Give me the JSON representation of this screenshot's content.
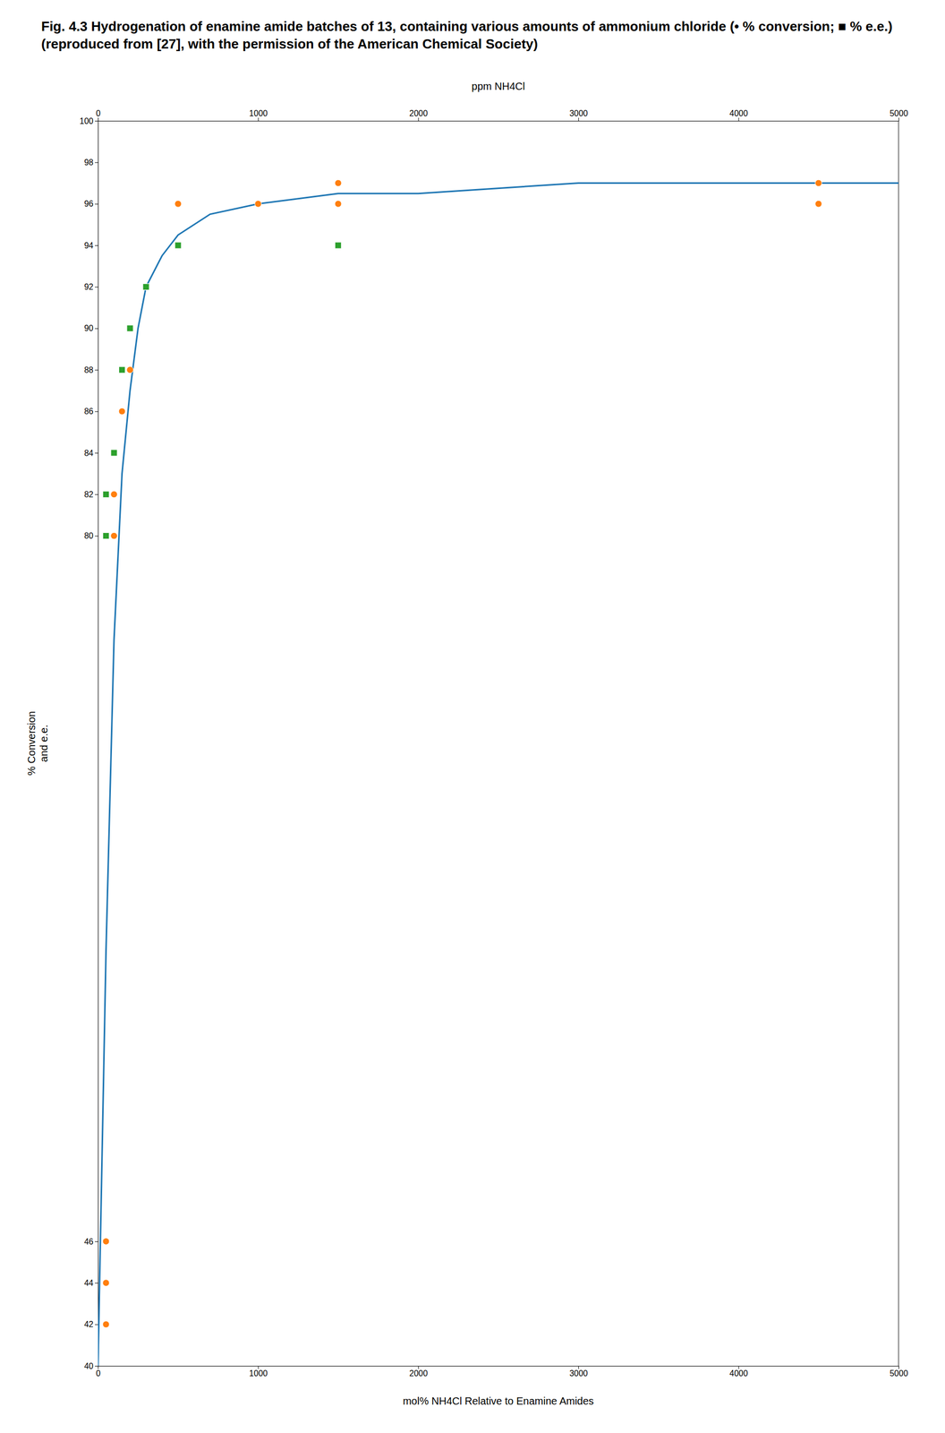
{
  "chart_data": {
    "type": "scatter",
    "title": "Fig. 4.3 Hydrogenation of enamine amide batches of 13, containing various amounts of ammonium chloride (• % conversion; ■ % e.e.) (reproduced from [27], with the permission of the American Chemical Society)",
    "xlabel": "mol% NH4Cl Relative to Enamine Amides",
    "x2label": "ppm NH4Cl",
    "ylabel": "% Conversion\nand e.e.",
    "xlim": [
      0,
      5000
    ],
    "xticks": [
      0,
      1000,
      2000,
      3000,
      4000,
      5000
    ],
    "x2lim": [
      0,
      5000
    ],
    "x2ticks": [
      0,
      1000,
      2000,
      3000,
      4000,
      5000
    ],
    "ylim": [
      40,
      100
    ],
    "yticks": [
      40,
      42,
      44,
      46,
      80,
      82,
      84,
      86,
      88,
      90,
      92,
      94,
      96,
      98,
      100
    ],
    "grid": false,
    "series": [
      {
        "type": "line",
        "line_style": "solid",
        "x": [
          0,
          50,
          100,
          150,
          200,
          250,
          300,
          400,
          500,
          700,
          1000,
          1500,
          2000,
          3000,
          4000,
          5000
        ],
        "values": [
          40,
          60,
          75,
          83,
          87,
          90,
          92,
          93.5,
          94.5,
          95.5,
          96,
          96.5,
          96.5,
          97,
          97,
          97
        ]
      },
      {
        "type": "scatter",
        "marker": "circle",
        "x": [
          50,
          50,
          50,
          100,
          100,
          150,
          200,
          200,
          300,
          500,
          500,
          1000,
          1500,
          4500,
          1500,
          4500
        ],
        "values": [
          42,
          44,
          46,
          80,
          82,
          86,
          88,
          90,
          92,
          96,
          96,
          96,
          96,
          96,
          97,
          97
        ]
      },
      {
        "type": "scatter",
        "marker": "square",
        "x": [
          50,
          50,
          100,
          150,
          200,
          300,
          500,
          1500
        ],
        "values": [
          80,
          82,
          84,
          88,
          90,
          92,
          94,
          94
        ]
      }
    ]
  }
}
